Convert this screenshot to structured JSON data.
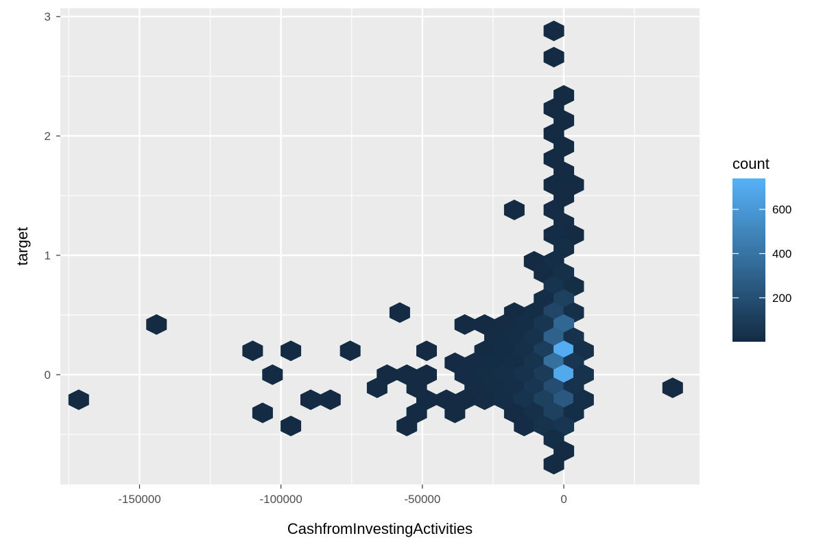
{
  "chart_data": {
    "type": "hexbin",
    "xlabel": "CashfromInvestingActivities",
    "ylabel": "target",
    "xlim": [
      -178000,
      48000
    ],
    "ylim": [
      -0.92,
      3.07
    ],
    "x_ticks": [
      -150000,
      -100000,
      -50000,
      0
    ],
    "x_tick_labels": [
      "-150000",
      "-100000",
      "-50000",
      "0"
    ],
    "y_ticks": [
      0,
      1,
      2,
      3
    ],
    "y_tick_labels": [
      "0",
      "1",
      "2",
      "3"
    ],
    "grid": true,
    "legend": {
      "title": "count",
      "position": "right",
      "ticks": [
        200,
        400,
        600
      ],
      "tick_labels": [
        "200",
        "400",
        "600"
      ],
      "range": [
        1,
        740
      ],
      "color_low": "#132B43",
      "color_high": "#56B1F7"
    },
    "hexagons": [
      {
        "x": -3500,
        "y": 2.88,
        "count": 2
      },
      {
        "x": -3500,
        "y": 2.66,
        "count": 2
      },
      {
        "x": 0,
        "y": 2.34,
        "count": 2
      },
      {
        "x": -3500,
        "y": 2.23,
        "count": 2
      },
      {
        "x": 0,
        "y": 2.13,
        "count": 3
      },
      {
        "x": -3500,
        "y": 2.02,
        "count": 3
      },
      {
        "x": 0,
        "y": 1.91,
        "count": 4
      },
      {
        "x": -3500,
        "y": 1.81,
        "count": 4
      },
      {
        "x": 0,
        "y": 1.7,
        "count": 5
      },
      {
        "x": -3500,
        "y": 1.59,
        "count": 5
      },
      {
        "x": 3500,
        "y": 1.59,
        "count": 2
      },
      {
        "x": 0,
        "y": 1.49,
        "count": 6
      },
      {
        "x": -17500,
        "y": 1.38,
        "count": 2
      },
      {
        "x": -3500,
        "y": 1.38,
        "count": 8
      },
      {
        "x": 0,
        "y": 1.27,
        "count": 10
      },
      {
        "x": -3500,
        "y": 1.17,
        "count": 12
      },
      {
        "x": 3500,
        "y": 1.17,
        "count": 4
      },
      {
        "x": 0,
        "y": 1.06,
        "count": 15
      },
      {
        "x": -10500,
        "y": 0.95,
        "count": 4
      },
      {
        "x": -3500,
        "y": 0.95,
        "count": 20
      },
      {
        "x": -7000,
        "y": 0.85,
        "count": 10
      },
      {
        "x": 0,
        "y": 0.85,
        "count": 30
      },
      {
        "x": -3500,
        "y": 0.74,
        "count": 50
      },
      {
        "x": 3500,
        "y": 0.74,
        "count": 15
      },
      {
        "x": -7000,
        "y": 0.63,
        "count": 20
      },
      {
        "x": 0,
        "y": 0.63,
        "count": 120
      },
      {
        "x": -58000,
        "y": 0.52,
        "count": 2
      },
      {
        "x": -17500,
        "y": 0.52,
        "count": 5
      },
      {
        "x": -10500,
        "y": 0.52,
        "count": 15
      },
      {
        "x": -3500,
        "y": 0.52,
        "count": 150
      },
      {
        "x": 3500,
        "y": 0.52,
        "count": 30
      },
      {
        "x": -144000,
        "y": 0.42,
        "count": 2
      },
      {
        "x": -35000,
        "y": 0.42,
        "count": 3
      },
      {
        "x": -28000,
        "y": 0.42,
        "count": 5
      },
      {
        "x": -21000,
        "y": 0.42,
        "count": 10
      },
      {
        "x": -14000,
        "y": 0.42,
        "count": 20
      },
      {
        "x": -7000,
        "y": 0.42,
        "count": 60
      },
      {
        "x": 0,
        "y": 0.42,
        "count": 330
      },
      {
        "x": -24500,
        "y": 0.31,
        "count": 10
      },
      {
        "x": -17500,
        "y": 0.31,
        "count": 15
      },
      {
        "x": -10500,
        "y": 0.31,
        "count": 40
      },
      {
        "x": -3500,
        "y": 0.31,
        "count": 300
      },
      {
        "x": 3500,
        "y": 0.31,
        "count": 40
      },
      {
        "x": -110000,
        "y": 0.2,
        "count": 2
      },
      {
        "x": -96500,
        "y": 0.2,
        "count": 2
      },
      {
        "x": -75500,
        "y": 0.2,
        "count": 2
      },
      {
        "x": -48500,
        "y": 0.2,
        "count": 2
      },
      {
        "x": -28000,
        "y": 0.2,
        "count": 5
      },
      {
        "x": -21000,
        "y": 0.2,
        "count": 12
      },
      {
        "x": -14000,
        "y": 0.2,
        "count": 30
      },
      {
        "x": -7000,
        "y": 0.2,
        "count": 100
      },
      {
        "x": 0,
        "y": 0.2,
        "count": 720
      },
      {
        "x": 7000,
        "y": 0.2,
        "count": 30
      },
      {
        "x": -38500,
        "y": 0.1,
        "count": 3
      },
      {
        "x": -31500,
        "y": 0.1,
        "count": 8
      },
      {
        "x": -24500,
        "y": 0.1,
        "count": 12
      },
      {
        "x": -17500,
        "y": 0.1,
        "count": 20
      },
      {
        "x": -10500,
        "y": 0.1,
        "count": 50
      },
      {
        "x": -3500,
        "y": 0.1,
        "count": 380
      },
      {
        "x": 3500,
        "y": 0.1,
        "count": 60
      },
      {
        "x": -103000,
        "y": 0.0,
        "count": 2
      },
      {
        "x": -62500,
        "y": 0.0,
        "count": 2
      },
      {
        "x": -55500,
        "y": 0.0,
        "count": 3
      },
      {
        "x": -48500,
        "y": 0.0,
        "count": 3
      },
      {
        "x": -35000,
        "y": 0.0,
        "count": 8
      },
      {
        "x": -28000,
        "y": 0.0,
        "count": 15
      },
      {
        "x": -21000,
        "y": 0.0,
        "count": 25
      },
      {
        "x": -14000,
        "y": 0.0,
        "count": 40
      },
      {
        "x": -7000,
        "y": 0.0,
        "count": 90
      },
      {
        "x": 0,
        "y": 0.0,
        "count": 700
      },
      {
        "x": 7000,
        "y": 0.0,
        "count": 40
      },
      {
        "x": -66000,
        "y": -0.11,
        "count": 2
      },
      {
        "x": -52000,
        "y": -0.11,
        "count": 2
      },
      {
        "x": -31500,
        "y": -0.11,
        "count": 10
      },
      {
        "x": -24500,
        "y": -0.11,
        "count": 15
      },
      {
        "x": -17500,
        "y": -0.11,
        "count": 25
      },
      {
        "x": -10500,
        "y": -0.11,
        "count": 60
      },
      {
        "x": -3500,
        "y": -0.11,
        "count": 190
      },
      {
        "x": 3500,
        "y": -0.11,
        "count": 40
      },
      {
        "x": 38500,
        "y": -0.11,
        "count": 2
      },
      {
        "x": -171500,
        "y": -0.21,
        "count": 2
      },
      {
        "x": -89500,
        "y": -0.21,
        "count": 2
      },
      {
        "x": -82500,
        "y": -0.21,
        "count": 2
      },
      {
        "x": -48500,
        "y": -0.21,
        "count": 2
      },
      {
        "x": -41500,
        "y": -0.21,
        "count": 3
      },
      {
        "x": -35000,
        "y": -0.21,
        "count": 5
      },
      {
        "x": -28000,
        "y": -0.21,
        "count": 10
      },
      {
        "x": -21000,
        "y": -0.21,
        "count": 20
      },
      {
        "x": -14000,
        "y": -0.21,
        "count": 50
      },
      {
        "x": -7000,
        "y": -0.21,
        "count": 120
      },
      {
        "x": 0,
        "y": -0.21,
        "count": 250
      },
      {
        "x": 7000,
        "y": -0.21,
        "count": 25
      },
      {
        "x": -106500,
        "y": -0.32,
        "count": 2
      },
      {
        "x": -52000,
        "y": -0.32,
        "count": 2
      },
      {
        "x": -38500,
        "y": -0.32,
        "count": 2
      },
      {
        "x": -17500,
        "y": -0.32,
        "count": 10
      },
      {
        "x": -10500,
        "y": -0.32,
        "count": 30
      },
      {
        "x": -3500,
        "y": -0.32,
        "count": 120
      },
      {
        "x": 3500,
        "y": -0.32,
        "count": 20
      },
      {
        "x": -96500,
        "y": -0.43,
        "count": 2
      },
      {
        "x": -55500,
        "y": -0.43,
        "count": 2
      },
      {
        "x": -14000,
        "y": -0.43,
        "count": 8
      },
      {
        "x": -7000,
        "y": -0.43,
        "count": 40
      },
      {
        "x": 0,
        "y": -0.43,
        "count": 60
      },
      {
        "x": -3500,
        "y": -0.54,
        "count": 15
      },
      {
        "x": 0,
        "y": -0.64,
        "count": 5
      },
      {
        "x": -3500,
        "y": -0.75,
        "count": 3
      }
    ]
  }
}
